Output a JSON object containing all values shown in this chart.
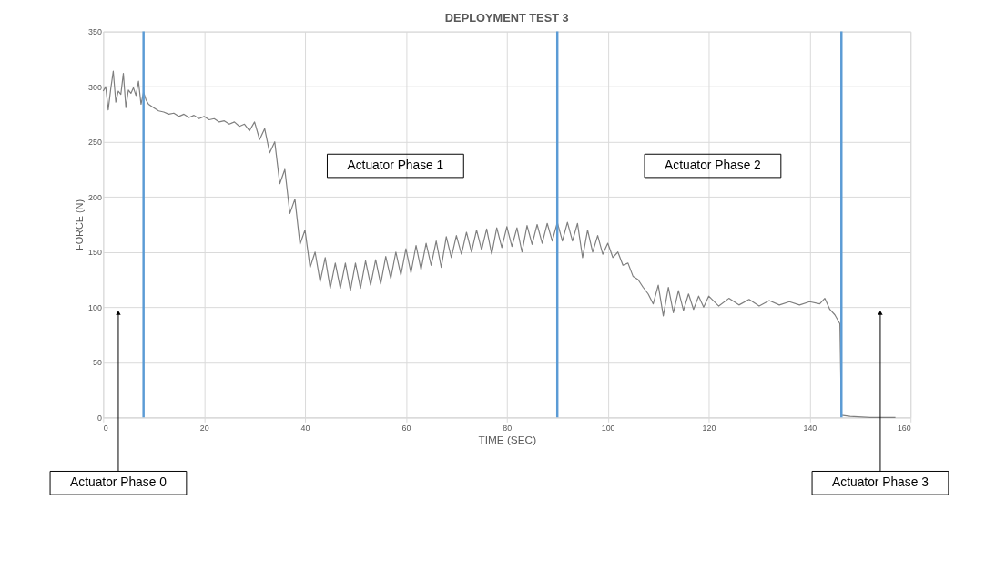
{
  "chart_data": {
    "type": "line",
    "title": "DEPLOYMENT TEST 3",
    "xlabel": "TIME (SEC)",
    "ylabel": "FORCE (N)",
    "xlim": [
      0,
      160
    ],
    "xticks": [
      0,
      20,
      40,
      60,
      80,
      100,
      120,
      140,
      160
    ],
    "ylim": [
      0,
      350
    ],
    "yticks": [
      0,
      50,
      100,
      150,
      200,
      250,
      300,
      350
    ],
    "grid": true,
    "marker": "none",
    "line_style": "solid",
    "series": [
      {
        "color": "#7f7f7f",
        "x": [
          0,
          0.5,
          1,
          1.5,
          2,
          2.5,
          3,
          3.5,
          4,
          4.5,
          5,
          5.5,
          6,
          6.5,
          7,
          7.5,
          8,
          8.5,
          9,
          10,
          11,
          12,
          13,
          14,
          15,
          16,
          17,
          18,
          19,
          20,
          21,
          22,
          23,
          24,
          25,
          26,
          27,
          28,
          29,
          30,
          31,
          32,
          33,
          34,
          35,
          36,
          37,
          38,
          39,
          40,
          41,
          42,
          43,
          44,
          45,
          46,
          47,
          48,
          49,
          50,
          51,
          52,
          53,
          54,
          55,
          56,
          57,
          58,
          59,
          60,
          61,
          62,
          63,
          64,
          65,
          66,
          67,
          68,
          69,
          70,
          71,
          72,
          73,
          74,
          75,
          76,
          77,
          78,
          79,
          80,
          81,
          82,
          83,
          84,
          85,
          86,
          87,
          88,
          89,
          90,
          91,
          92,
          93,
          94,
          95,
          96,
          97,
          98,
          99,
          100,
          101,
          102,
          103,
          104,
          105,
          106,
          107,
          108,
          109,
          110,
          111,
          112,
          113,
          114,
          115,
          116,
          117,
          118,
          119,
          120,
          122,
          124,
          126,
          128,
          130,
          132,
          134,
          136,
          138,
          140,
          142,
          143,
          144,
          145,
          146,
          146.3,
          148,
          152,
          157
        ],
        "values": [
          296,
          300,
          279,
          298,
          314,
          286,
          296,
          293,
          312,
          281,
          297,
          294,
          299,
          292,
          305,
          284,
          295,
          288,
          284,
          281,
          278,
          277,
          275,
          276,
          273,
          275,
          272,
          274,
          271,
          273,
          270,
          271,
          268,
          269,
          266,
          268,
          264,
          266,
          260,
          268,
          252,
          262,
          240,
          250,
          212,
          225,
          185,
          198,
          157,
          170,
          136,
          150,
          123,
          145,
          117,
          140,
          117,
          140,
          115,
          140,
          117,
          142,
          120,
          143,
          121,
          146,
          126,
          150,
          129,
          153,
          131,
          156,
          134,
          158,
          138,
          160,
          136,
          164,
          145,
          165,
          148,
          168,
          150,
          170,
          152,
          171,
          148,
          172,
          154,
          173,
          155,
          172,
          150,
          174,
          157,
          175,
          158,
          176,
          160,
          177,
          160,
          177,
          160,
          176,
          145,
          170,
          150,
          165,
          148,
          158,
          145,
          150,
          138,
          140,
          128,
          125,
          118,
          112,
          103,
          120,
          92,
          118,
          95,
          115,
          97,
          112,
          98,
          110,
          100,
          110,
          101,
          108,
          102,
          107,
          101,
          106,
          102,
          105,
          102,
          105,
          103,
          108,
          98,
          93,
          85,
          2,
          1,
          0,
          0
        ]
      }
    ],
    "ref_lines": [
      {
        "axis": "x",
        "value": 8,
        "color": "#5b9bd5"
      },
      {
        "axis": "x",
        "value": 90,
        "color": "#5b9bd5"
      },
      {
        "axis": "x",
        "value": 146.3,
        "color": "#5b9bd5"
      }
    ],
    "annotations": [
      "Actuator Phase 1",
      "Actuator Phase 2",
      {
        "text": "Actuator Phase 0",
        "x": 3,
        "y": 95
      },
      {
        "text": "Actuator Phase 3",
        "x": 154,
        "y": 95
      }
    ]
  }
}
